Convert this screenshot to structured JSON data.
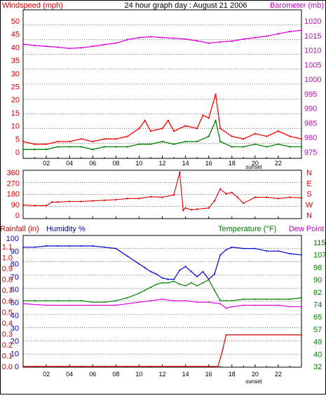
{
  "chart_data": [
    {
      "type": "line",
      "title": "24 hour graph day : August 21 2006",
      "ylabel_left": "Windspeed (mph)",
      "ylabel_right": "Barometer (mb)",
      "x_ticks": [
        "02",
        "04",
        "06",
        "08",
        "10",
        "12",
        "14",
        "16",
        "18",
        "20",
        "22"
      ],
      "x_annotation": "sunset",
      "y_left_ticks": [
        "0",
        "5",
        "10",
        "15",
        "20",
        "25",
        "30",
        "35",
        "40",
        "45",
        "50"
      ],
      "y_right_ticks": [
        "975",
        "980",
        "985",
        "990",
        "995",
        "1000",
        "1005",
        "1010",
        "1015",
        "1020"
      ],
      "ylim_left": [
        0,
        50
      ],
      "ylim_right": [
        975,
        1020
      ],
      "colors": {
        "gust": "#ff0000",
        "avg": "#008000",
        "barometer": "#e000e0",
        "grid": "#000000"
      },
      "series": [
        {
          "name": "Barometer",
          "axis": "right",
          "color": "#e000e0",
          "x": [
            0,
            1,
            2,
            3,
            4,
            5,
            6,
            7,
            8,
            9,
            10,
            11,
            12,
            13,
            14,
            15,
            16,
            17,
            18,
            19,
            20,
            21,
            22,
            23,
            24
          ],
          "y": [
            1012.0,
            1011.6,
            1011.3,
            1011.0,
            1010.6,
            1010.8,
            1011.3,
            1011.9,
            1012.4,
            1013.6,
            1014.3,
            1014.6,
            1014.3,
            1014.1,
            1013.8,
            1013.2,
            1012.4,
            1012.8,
            1013.1,
            1013.8,
            1014.3,
            1014.8,
            1015.6,
            1016.4,
            1016.8
          ]
        },
        {
          "name": "Wind gust",
          "axis": "left",
          "color": "#ff0000",
          "x": [
            0,
            1,
            2,
            3,
            4,
            5,
            6,
            7,
            8,
            9,
            10,
            10.5,
            11,
            12,
            12.5,
            13,
            14,
            15,
            15.5,
            16,
            16.6,
            17,
            18,
            19,
            20,
            21,
            22,
            23,
            24
          ],
          "y": [
            4,
            3,
            3,
            4,
            4,
            5,
            4,
            5,
            5,
            6,
            9,
            12,
            8,
            9,
            12,
            8,
            10,
            9,
            14,
            13,
            22,
            9,
            6,
            5,
            7,
            6,
            8,
            6,
            5
          ]
        },
        {
          "name": "Wind average",
          "axis": "left",
          "color": "#008000",
          "x": [
            0,
            1,
            2,
            3,
            4,
            5,
            6,
            7,
            8,
            9,
            10,
            11,
            12,
            13,
            14,
            15,
            16,
            16.6,
            17,
            18,
            19,
            20,
            21,
            22,
            23,
            24
          ],
          "y": [
            1,
            1,
            1,
            2,
            2,
            2,
            1,
            2,
            2,
            2,
            3,
            3,
            4,
            3,
            4,
            4,
            6,
            12,
            4,
            2,
            2,
            3,
            2,
            3,
            2,
            2
          ]
        }
      ]
    },
    {
      "type": "scatter",
      "y_left_ticks": [
        "0",
        "90",
        "180",
        "270",
        "360"
      ],
      "y_right_ticks": [
        "N",
        "W",
        "S",
        "E",
        "N"
      ],
      "ylim": [
        0,
        360
      ],
      "colors": {
        "direction": "#dd0000"
      },
      "series": [
        {
          "name": "Wind direction",
          "color": "#dd0000",
          "x": [
            0,
            1,
            2,
            2.5,
            3,
            4,
            5,
            6,
            7,
            8,
            9,
            10,
            11,
            12,
            13,
            13.5,
            13.8,
            14,
            14.5,
            15,
            16,
            16.5,
            17,
            17.5,
            18,
            18.5,
            19,
            20,
            21,
            22,
            23,
            24
          ],
          "y": [
            85,
            80,
            80,
            110,
            110,
            115,
            115,
            120,
            125,
            130,
            140,
            140,
            155,
            150,
            170,
            360,
            40,
            60,
            45,
            50,
            60,
            120,
            220,
            180,
            190,
            150,
            100,
            150,
            150,
            140,
            150,
            145
          ]
        }
      ]
    },
    {
      "type": "line",
      "ylabel_rain": "Rainfall (in)",
      "ylabel_humidity": "Humidity %",
      "ylabel_temperature": "Temperature (°F)",
      "ylabel_dewpoint": "Dew Point",
      "x_ticks": [
        "02",
        "04",
        "06",
        "08",
        "10",
        "12",
        "14",
        "16",
        "18",
        "20",
        "22"
      ],
      "x_annotation": "sunset",
      "y_humidity_ticks": [
        "0",
        "10",
        "20",
        "30",
        "40",
        "50",
        "60",
        "70",
        "80",
        "90",
        "100"
      ],
      "y_rain_ticks": [
        "0.0",
        "0.1",
        "0.2",
        "0.3",
        "0.4",
        "0.5",
        "0.6",
        "0.7",
        "0.8",
        "0.9",
        "1.0",
        "1.1"
      ],
      "y_temperature_ticks": [
        "32",
        "40",
        "49",
        "57",
        "65",
        "74",
        "82",
        "90",
        "98",
        "107",
        "115"
      ],
      "ylim_humidity": [
        0,
        100
      ],
      "ylim_rain": [
        0,
        1.1
      ],
      "ylim_temperature": [
        32,
        115
      ],
      "colors": {
        "humidity": "#0000cc",
        "temperature": "#008000",
        "dewpoint": "#e000e0",
        "rainfall": "#cc0000"
      },
      "series": [
        {
          "name": "Humidity",
          "axis": "humidity",
          "color": "#0000cc",
          "x": [
            0,
            1,
            2,
            3,
            4,
            5,
            6,
            7,
            8,
            9,
            10,
            10.5,
            11,
            11.5,
            12,
            12.5,
            13,
            13.5,
            14,
            14.5,
            15,
            15.5,
            16,
            16.5,
            17,
            17.5,
            18,
            19,
            20,
            21,
            22,
            23,
            24
          ],
          "y": [
            93,
            93,
            94,
            94,
            94,
            94,
            94,
            93,
            92,
            86,
            80,
            77,
            74,
            72,
            69,
            68,
            68,
            75,
            78,
            74,
            70,
            74,
            68,
            72,
            87,
            91,
            93,
            92,
            92,
            90,
            90,
            88,
            87
          ]
        },
        {
          "name": "Temperature",
          "axis": "temperature",
          "color": "#008000",
          "x": [
            0,
            1,
            2,
            3,
            4,
            5,
            6,
            7,
            8,
            9,
            10,
            10.5,
            11,
            11.5,
            12,
            12.5,
            13,
            13.5,
            14,
            14.5,
            15,
            15.5,
            16,
            16.5,
            17,
            17.5,
            18,
            19,
            20,
            21,
            22,
            23,
            24
          ],
          "y": [
            76,
            76,
            76,
            76,
            76,
            76,
            75,
            75,
            76,
            78,
            81,
            83,
            85,
            87,
            88,
            88,
            89,
            87,
            86,
            88,
            86,
            88,
            90,
            83,
            76,
            76,
            76,
            77,
            77,
            77,
            77,
            77,
            78
          ]
        },
        {
          "name": "Dew Point",
          "axis": "temperature",
          "color": "#e000e0",
          "x": [
            0,
            2,
            4,
            6,
            8,
            10,
            11,
            12,
            13,
            14,
            15,
            16,
            17,
            17.5,
            18,
            19,
            20,
            21,
            22,
            23,
            24
          ],
          "y": [
            74,
            73,
            73,
            73,
            73,
            75,
            76,
            77,
            76,
            76,
            75,
            75,
            74,
            71,
            72,
            73,
            73,
            73,
            73,
            72,
            72
          ]
        },
        {
          "name": "Rainfall",
          "axis": "rain",
          "color": "#cc0000",
          "x": [
            0,
            6,
            12,
            16.8,
            17.2,
            17.5,
            24
          ],
          "y": [
            0.0,
            0.0,
            0.0,
            0.0,
            0.15,
            0.29,
            0.29
          ]
        }
      ]
    }
  ]
}
